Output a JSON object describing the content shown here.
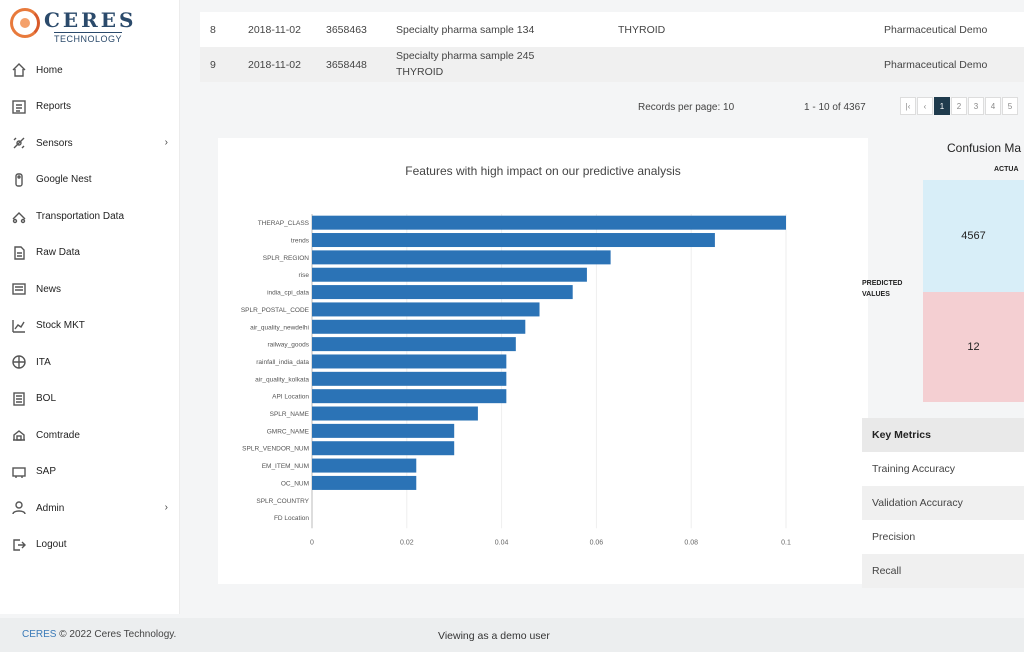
{
  "brand": {
    "name": "CERES",
    "sub": "TECHNOLOGY"
  },
  "sidebar": {
    "items": [
      {
        "label": "Home",
        "icon": "home-icon"
      },
      {
        "label": "Reports",
        "icon": "reports-icon"
      },
      {
        "label": "Sensors",
        "icon": "sensors-icon",
        "chevron": "›"
      },
      {
        "label": "Google Nest",
        "icon": "google-nest-icon"
      },
      {
        "label": "Transportation Data",
        "icon": "transportation-icon"
      },
      {
        "label": "Raw Data",
        "icon": "raw-data-icon"
      },
      {
        "label": "News",
        "icon": "news-icon"
      },
      {
        "label": "Stock MKT",
        "icon": "stock-icon"
      },
      {
        "label": "ITA",
        "icon": "ita-icon"
      },
      {
        "label": "BOL",
        "icon": "bol-icon"
      },
      {
        "label": "Comtrade",
        "icon": "comtrade-icon"
      },
      {
        "label": "SAP",
        "icon": "sap-icon"
      },
      {
        "label": "Admin",
        "icon": "admin-icon",
        "chevron": "›"
      },
      {
        "label": "Logout",
        "icon": "logout-icon"
      }
    ]
  },
  "table": {
    "rows": [
      {
        "idx": "8",
        "date": "2018-11-02",
        "id": "3658463",
        "name": "Specialty pharma sample 134",
        "name2": "",
        "tag": "THYROID",
        "org": "Pharmaceutical Demo"
      },
      {
        "idx": "9",
        "date": "2018-11-02",
        "id": "3658448",
        "name": "Specialty pharma sample 245",
        "name2": "THYROID",
        "tag": "",
        "org": "Pharmaceutical Demo"
      }
    ]
  },
  "pager": {
    "records_per_page": "Records per page: 10",
    "range": "1 - 10 of 4367",
    "buttons": [
      "|‹",
      "‹",
      "1",
      "2",
      "3",
      "4",
      "5"
    ],
    "active": "1"
  },
  "chart_data": {
    "type": "bar",
    "orientation": "horizontal",
    "title": "Features with high impact on our predictive analysis",
    "categories": [
      "THERAP_CLASS",
      "trends",
      "SPLR_REGION",
      "rise",
      "india_cpi_data",
      "SPLR_POSTAL_CODE",
      "air_quality_newdelhi",
      "railway_goods",
      "rainfall_india_data",
      "air_quality_kolkata",
      "API Location",
      "SPLR_NAME",
      "GMRC_NAME",
      "SPLR_VENDOR_NUM",
      "EM_ITEM_NUM",
      "OC_NUM",
      "SPLR_COUNTRY",
      "FD Location"
    ],
    "values": [
      0.1,
      0.085,
      0.063,
      0.058,
      0.055,
      0.048,
      0.045,
      0.043,
      0.041,
      0.041,
      0.041,
      0.035,
      0.03,
      0.03,
      0.022,
      0.022,
      0.0,
      0.0
    ],
    "xticks": [
      "0",
      "0.02",
      "0.04",
      "0.06",
      "0.08",
      "0.1"
    ],
    "xlim": [
      0,
      0.1
    ],
    "color": "#2b73b6",
    "grid": true
  },
  "confusion": {
    "title": "Confusion Ma",
    "actual_label": "ACTUA",
    "predicted_label_1": "PREDICTED",
    "predicted_label_2": "VALUES",
    "tp": "4567",
    "fn": "12",
    "colors": {
      "tp": "#d8eef8",
      "fn": "#f4cfd2"
    }
  },
  "metrics": {
    "header": "Key Metrics",
    "items": [
      "Training Accuracy",
      "Validation Accuracy",
      "Precision",
      "Recall"
    ]
  },
  "footer": {
    "ceres": "CERES",
    "copyright": "© 2022 Ceres Technology.",
    "status": "Viewing as a demo user"
  }
}
